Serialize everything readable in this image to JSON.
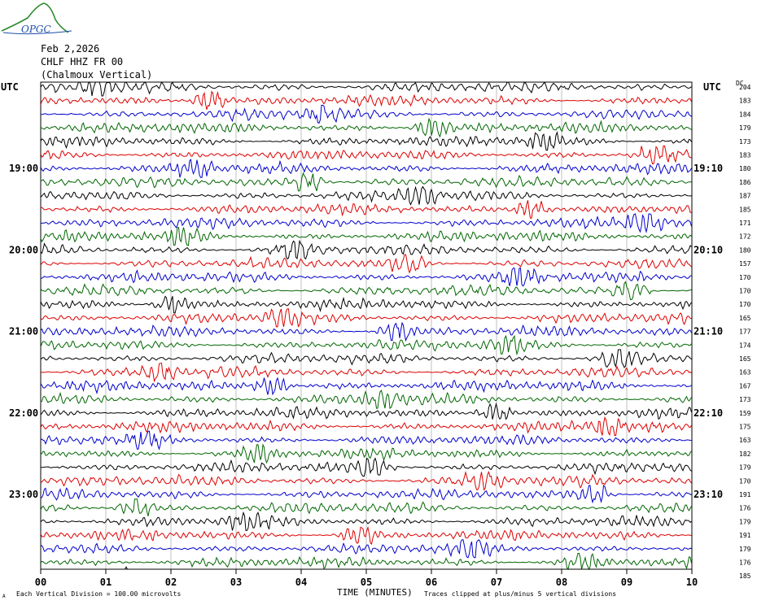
{
  "header": {
    "logo_text": "OPGC",
    "date": "Feb 2,2026",
    "station": "CHLF HHZ FR 00",
    "location": "(Chalmoux Vertical)",
    "utc_left": "UTC",
    "utc_right": "UTC",
    "dc_label": "DC"
  },
  "footer": {
    "xlabel": "TIME (MINUTES)",
    "division_note": "Each Vertical Division =  100.00 microvolts",
    "clip_note": "Traces clipped at plus/minus 5 vertical divisions",
    "corner_mark": "A"
  },
  "chart_data": {
    "type": "line",
    "title": "",
    "xlabel": "TIME (MINUTES)",
    "xlim": [
      0,
      10
    ],
    "x_ticks": [
      "00",
      "01",
      "02",
      "03",
      "04",
      "05",
      "06",
      "07",
      "08",
      "09",
      "10"
    ],
    "trace_colors": [
      "#000000",
      "#dd0000",
      "#0000cc",
      "#006600"
    ],
    "rows_per_hour": 6,
    "left_time_labels": [
      {
        "row": 6,
        "text": "19:00"
      },
      {
        "row": 12,
        "text": "20:00"
      },
      {
        "row": 18,
        "text": "21:00"
      },
      {
        "row": 24,
        "text": "22:00"
      },
      {
        "row": 30,
        "text": "23:00"
      }
    ],
    "right_time_labels": [
      {
        "row": 6,
        "text": "19:10"
      },
      {
        "row": 12,
        "text": "20:10"
      },
      {
        "row": 18,
        "text": "21:10"
      },
      {
        "row": 24,
        "text": "22:10"
      },
      {
        "row": 30,
        "text": "23:10"
      }
    ],
    "dc_offsets": [
      204,
      183,
      184,
      179,
      173,
      183,
      180,
      186,
      187,
      185,
      171,
      172,
      180,
      157,
      170,
      170,
      170,
      165,
      177,
      174,
      165,
      163,
      167,
      173,
      159,
      175,
      163,
      182,
      179,
      170,
      191,
      176,
      179,
      191,
      179,
      176,
      185
    ]
  }
}
